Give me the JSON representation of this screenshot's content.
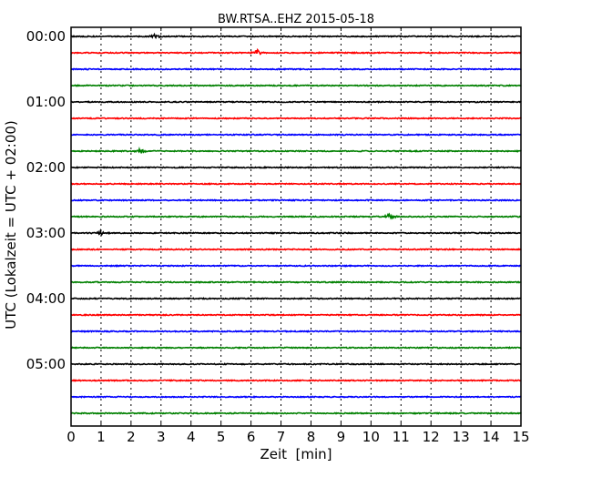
{
  "chart_data": {
    "type": "line",
    "title": "BW.RTSA..EHZ 2015-05-18",
    "xlabel": "Zeit  [min]",
    "ylabel": "UTC (Lokalzeit = UTC + 02:00)",
    "xlim": [
      0,
      15
    ],
    "xticks": [
      "0",
      "1",
      "2",
      "3",
      "4",
      "5",
      "6",
      "7",
      "8",
      "9",
      "10",
      "11",
      "12",
      "13",
      "14",
      "15"
    ],
    "yticks": [
      "00:00",
      "01:00",
      "02:00",
      "03:00",
      "04:00",
      "05:00"
    ],
    "grid": "vertical dotted lines at each minute",
    "trace_interval_minutes": 15,
    "trace_count": 24,
    "trace_colors": [
      "#000000",
      "#ff0000",
      "#0000ff",
      "#008000"
    ],
    "events": [
      {
        "trace": 0,
        "minute": 2.8,
        "amplitude": 0.25
      },
      {
        "trace": 1,
        "minute": 6.2,
        "amplitude": 0.35
      },
      {
        "trace": 7,
        "minute": 2.3,
        "amplitude": 0.3
      },
      {
        "trace": 11,
        "minute": 10.6,
        "amplitude": 0.35
      },
      {
        "trace": 12,
        "minute": 0.95,
        "amplitude": 0.2
      }
    ]
  }
}
